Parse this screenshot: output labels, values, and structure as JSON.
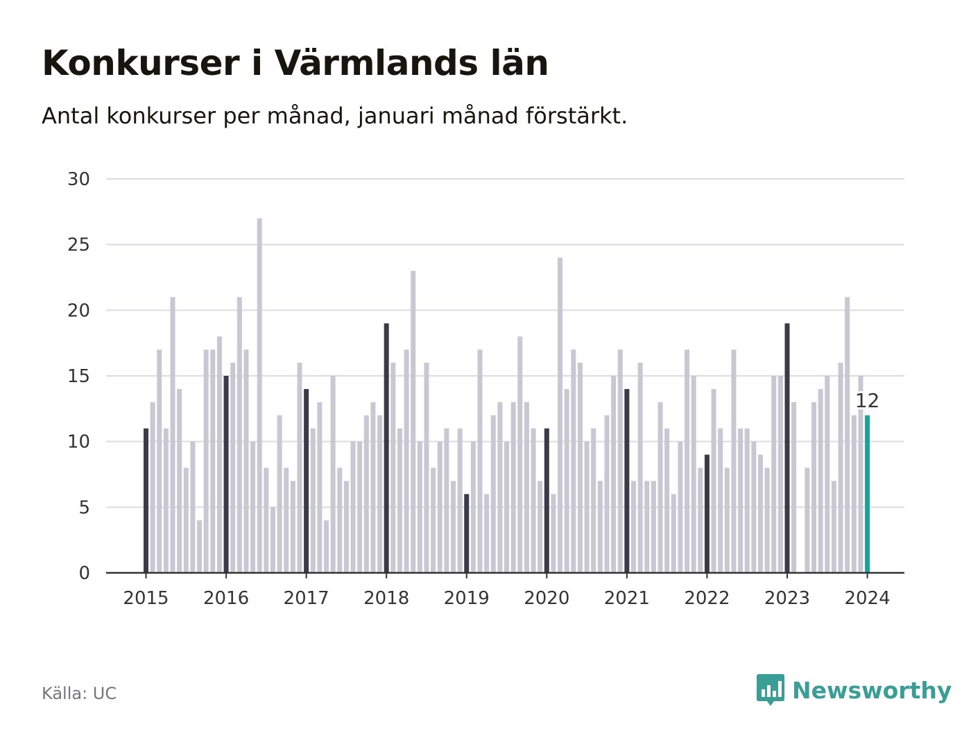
{
  "header": {
    "title": "Konkurser i Värmlands län",
    "subtitle": "Antal konkurser per månad, januari månad förstärkt."
  },
  "footer": {
    "source": "Källa: UC",
    "brand": "Newsworthy",
    "brand_icon": "bar-chart-speech-bubble-icon"
  },
  "colors": {
    "regular_bar": "#c8c7d2",
    "january_bar": "#3b3a48",
    "latest_bar": "#1ba39b",
    "grid": "#dcdce0",
    "axis": "#333333",
    "brand": "#3a9e97"
  },
  "chart_data": {
    "type": "bar",
    "title": "Konkurser i Värmlands län",
    "subtitle": "Antal konkurser per månad, januari månad förstärkt.",
    "ylim": [
      0,
      30
    ],
    "yticks": [
      0,
      5,
      10,
      15,
      20,
      25,
      30
    ],
    "xticks": [
      "2015",
      "2016",
      "2017",
      "2018",
      "2019",
      "2020",
      "2021",
      "2022",
      "2023",
      "2024"
    ],
    "grid": true,
    "start": "2015-01",
    "end": "2024-01",
    "highlight": "january",
    "latest_label": "12",
    "values": [
      11,
      13,
      17,
      11,
      21,
      14,
      8,
      10,
      4,
      17,
      17,
      18,
      15,
      16,
      21,
      17,
      10,
      27,
      8,
      5,
      12,
      8,
      7,
      16,
      14,
      11,
      13,
      4,
      15,
      8,
      7,
      10,
      10,
      12,
      13,
      12,
      19,
      16,
      11,
      17,
      23,
      10,
      16,
      8,
      10,
      11,
      7,
      11,
      6,
      10,
      17,
      6,
      12,
      13,
      10,
      13,
      18,
      13,
      11,
      7,
      11,
      6,
      24,
      14,
      17,
      16,
      10,
      11,
      7,
      12,
      15,
      17,
      14,
      7,
      16,
      7,
      7,
      13,
      11,
      6,
      10,
      17,
      15,
      8,
      9,
      14,
      11,
      8,
      17,
      11,
      11,
      10,
      9,
      8,
      15,
      15,
      19,
      13,
      0,
      8,
      13,
      14,
      15,
      7,
      16,
      21,
      12,
      15,
      12
    ]
  }
}
